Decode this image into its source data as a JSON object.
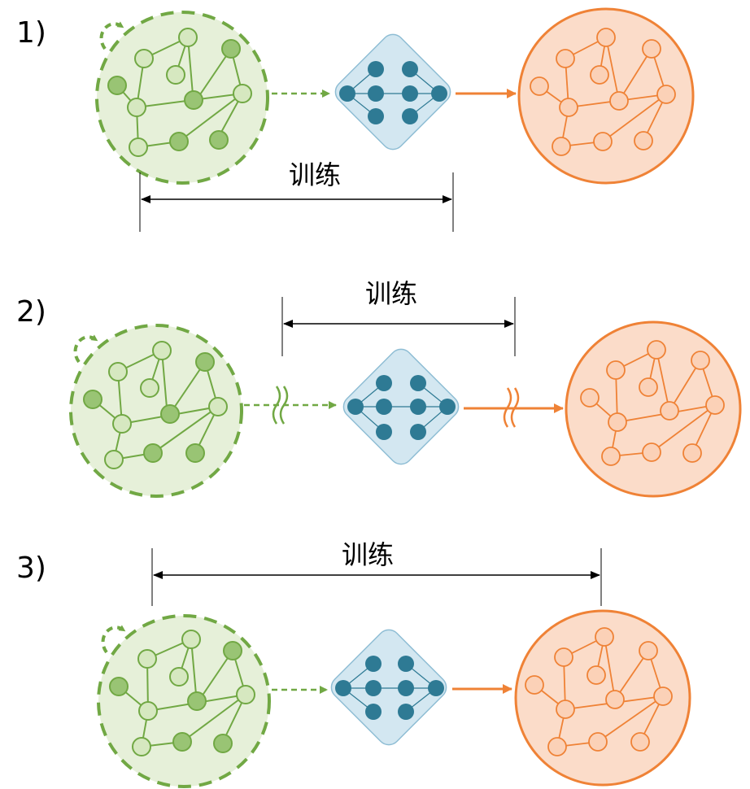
{
  "rows": [
    {
      "label": "1)",
      "train_label": "训练"
    },
    {
      "label": "2)",
      "train_label": "训练"
    },
    {
      "label": "3)",
      "train_label": "训练"
    }
  ],
  "colors": {
    "green_fill": "#e6f0d9",
    "green_stroke": "#71a844",
    "green_node_light": "#d6e8c0",
    "green_node_dark": "#99c474",
    "diamond_fill": "#d3e7f1",
    "diamond_stroke": "#8ebdd4",
    "diamond_node": "#2e7a94",
    "orange_fill": "#fbdcc9",
    "orange_stroke": "#ef8236",
    "orange_node": "#fbd1b7"
  }
}
